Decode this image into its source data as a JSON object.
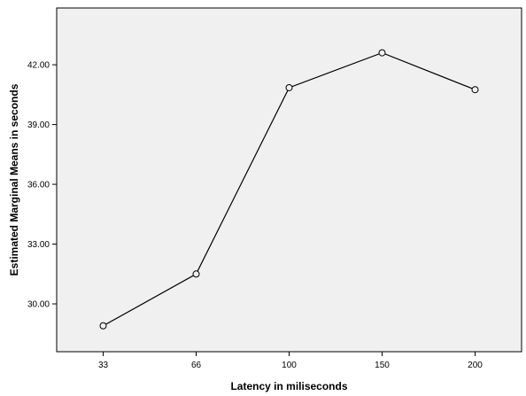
{
  "chart_data": {
    "type": "line",
    "categories": [
      "33",
      "66",
      "100",
      "150",
      "200"
    ],
    "series": [
      {
        "values": [
          28.9,
          31.5,
          40.85,
          42.6,
          40.75
        ]
      }
    ],
    "xlabel": "Latency in miliseconds",
    "ylabel": "Estimated Marginal Means in seconds",
    "ylim": [
      27.6,
      44.85
    ],
    "yticks": [
      "30.00",
      "33.00",
      "36.00",
      "39.00",
      "42.00"
    ],
    "yticks_values": [
      30,
      33,
      36,
      39,
      42
    ],
    "grid": false,
    "legend": "none",
    "marker": "open-circle",
    "colors": {
      "plot_background": "#f0f0f0",
      "line": "#000000",
      "frame": "#000000"
    }
  }
}
